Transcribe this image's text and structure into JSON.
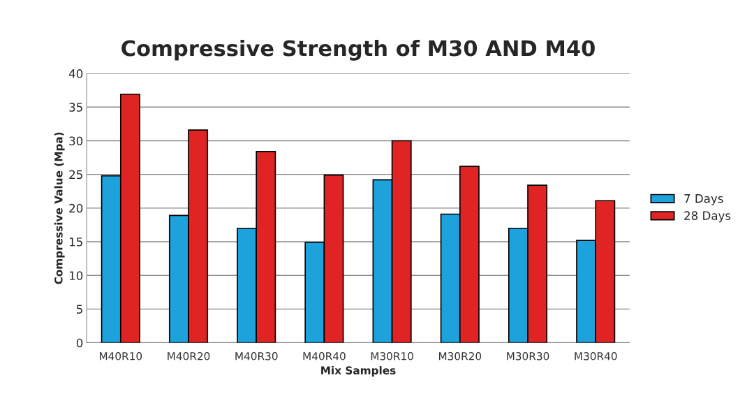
{
  "chart_data": {
    "type": "bar",
    "title": "Compressive Strength of M30 AND M40",
    "xlabel": "Mix Samples",
    "ylabel": "Compressive Value (Mpa)",
    "categories": [
      "M40R10",
      "M40R20",
      "M40R30",
      "M40R40",
      "M30R10",
      "M30R20",
      "M30R30",
      "M30R40"
    ],
    "series": [
      {
        "name": "7 Days",
        "color": "#1ea2dc",
        "values": [
          24.8,
          18.9,
          17.0,
          14.9,
          24.2,
          19.1,
          17.0,
          15.2
        ]
      },
      {
        "name": "28 Days",
        "color": "#e02424",
        "values": [
          36.9,
          31.6,
          28.4,
          24.9,
          30.0,
          26.2,
          23.4,
          21.1
        ]
      }
    ],
    "ylim": [
      0,
      40
    ],
    "yticks": [
      0,
      5,
      10,
      15,
      20,
      25,
      30,
      35,
      40
    ],
    "grid": "y",
    "legend": "right"
  }
}
